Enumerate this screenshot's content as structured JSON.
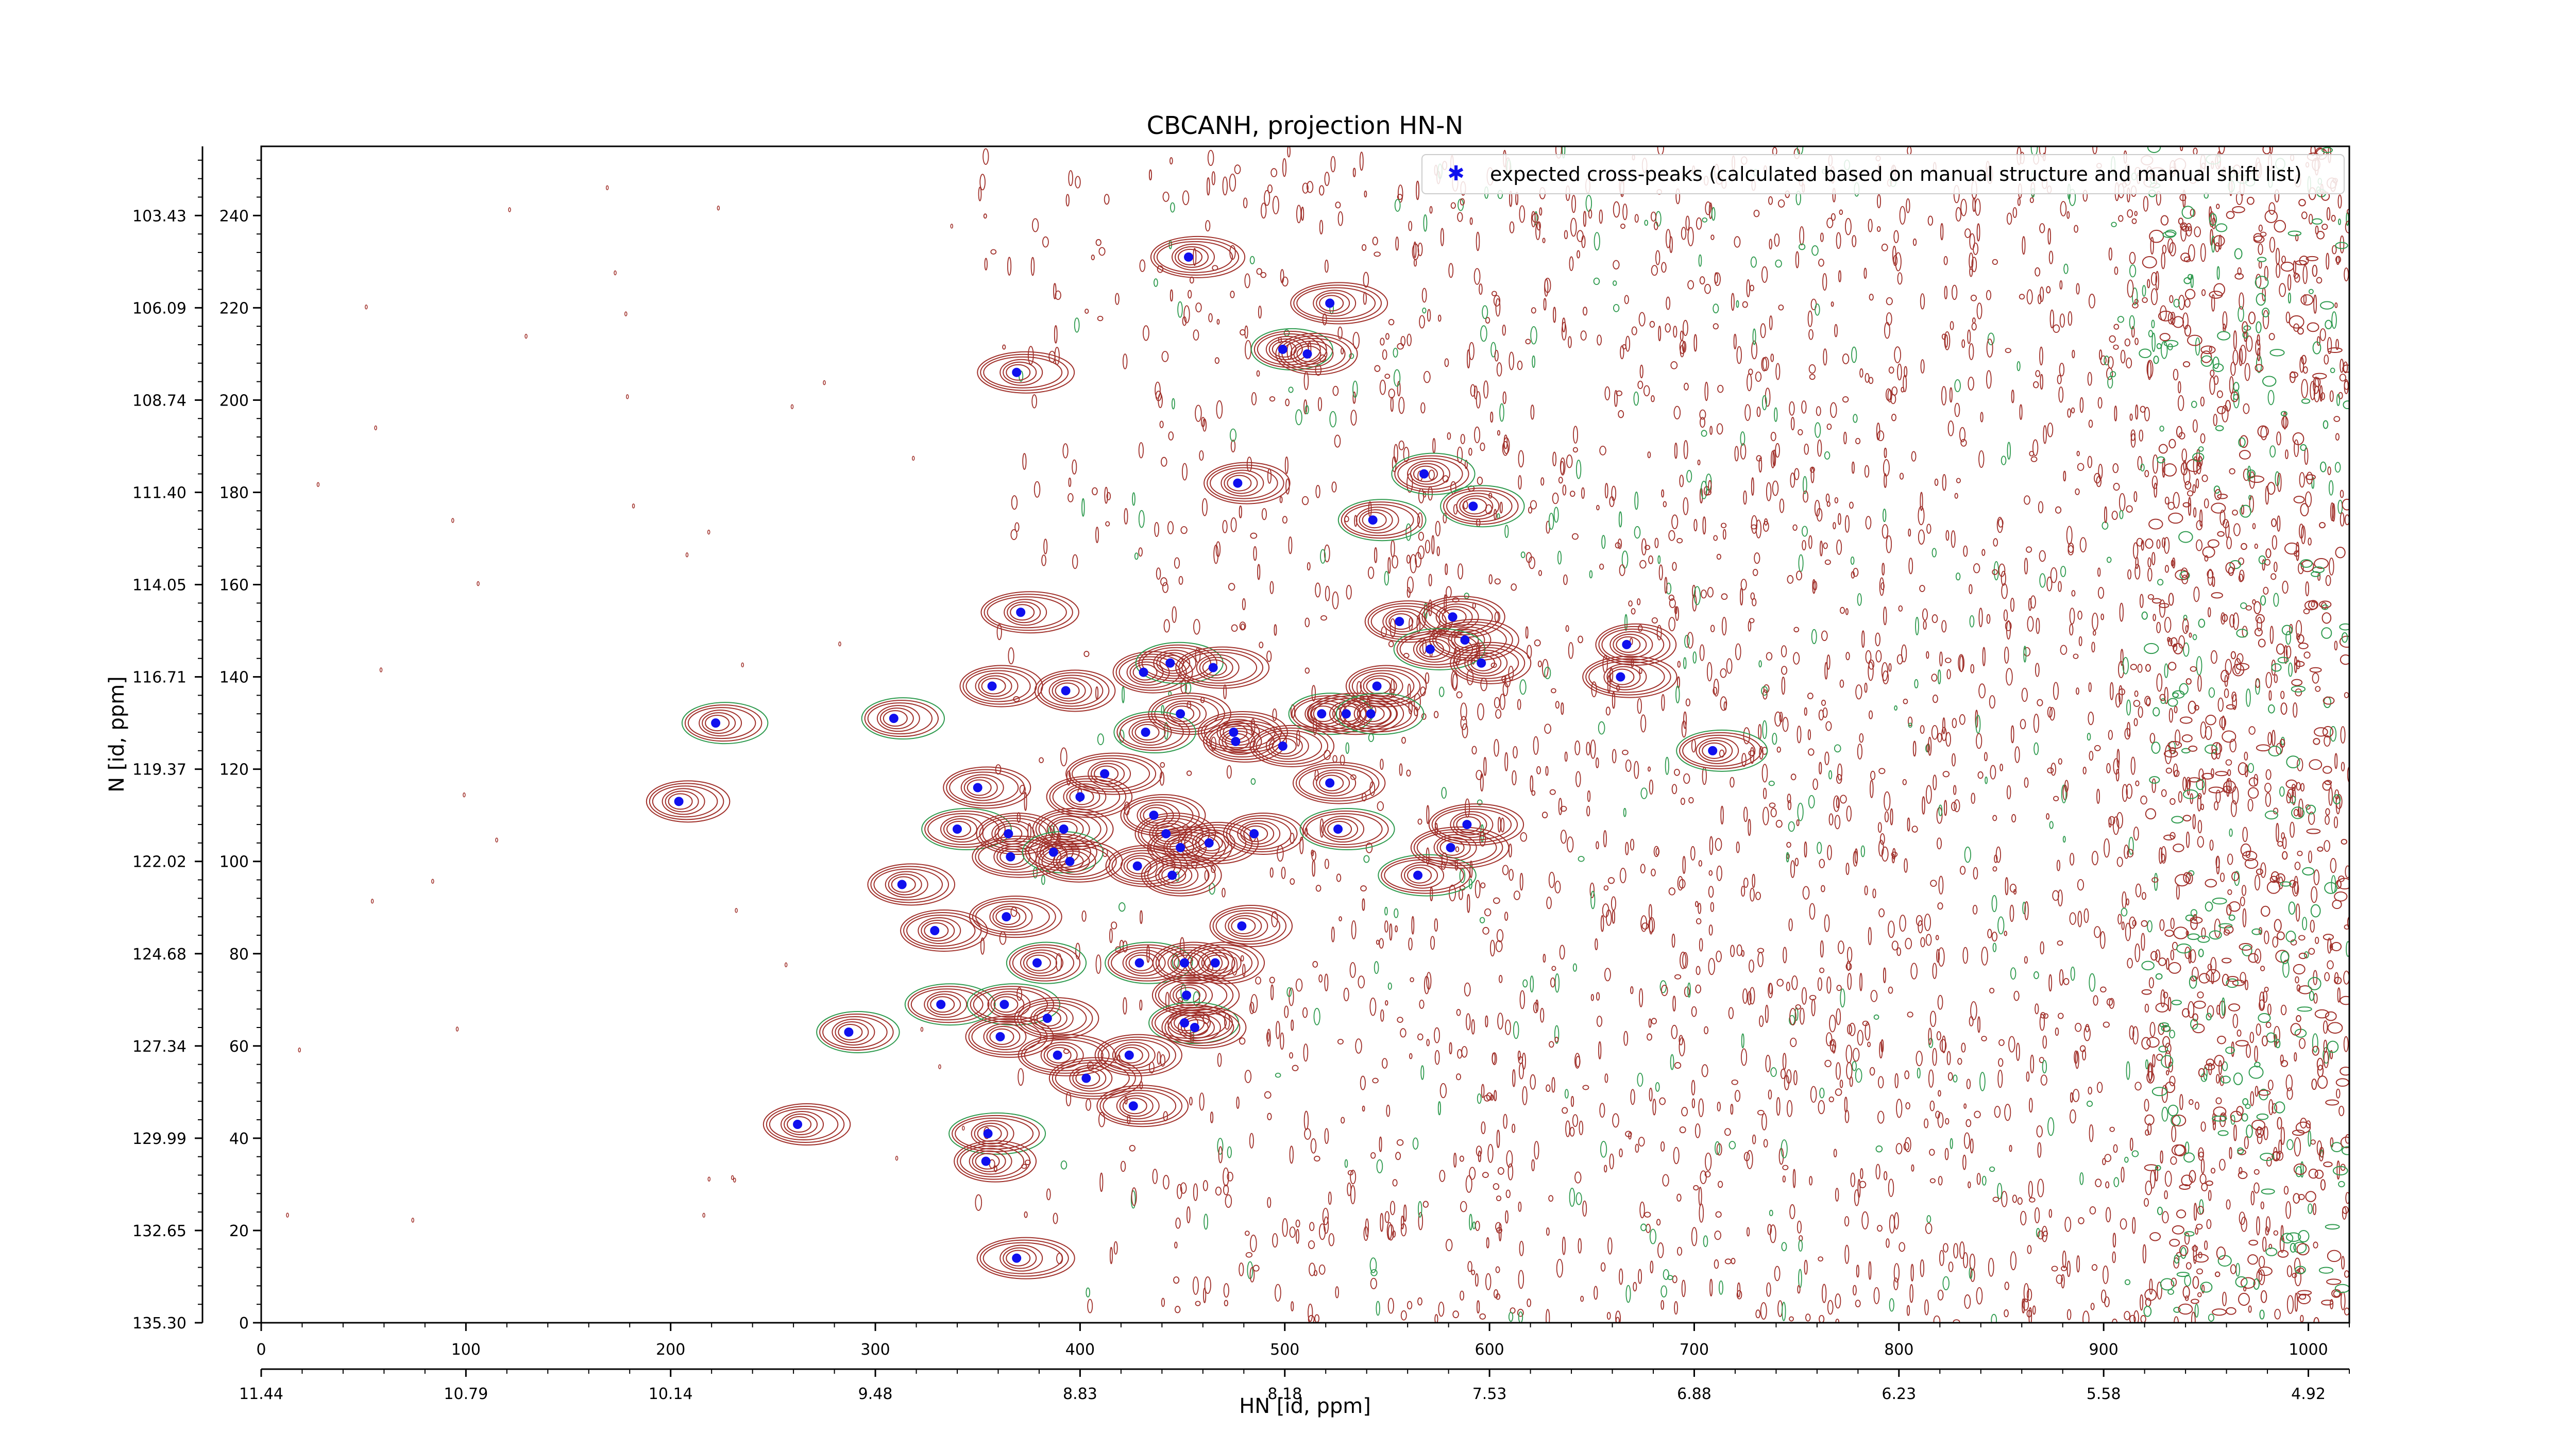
{
  "chart_data": {
    "type": "scatter",
    "title": "CBCANH, projection HN-N",
    "xlabel": "HN [id, ppm]",
    "ylabel": "N [id, ppm]",
    "xlim": [
      0,
      1020
    ],
    "ylim": [
      0,
      255
    ],
    "x_index_ticks": [
      0,
      100,
      200,
      300,
      400,
      500,
      600,
      700,
      800,
      900,
      1000
    ],
    "x_ppm_ticks": [
      "11.44",
      "10.79",
      "10.14",
      "9.48",
      "8.83",
      "8.18",
      "7.53",
      "6.88",
      "6.23",
      "5.58",
      "4.92"
    ],
    "y_index_ticks": [
      0,
      20,
      40,
      60,
      80,
      100,
      120,
      140,
      160,
      180,
      200,
      220,
      240
    ],
    "y_ppm_ticks": [
      "135.30",
      "132.65",
      "129.99",
      "127.34",
      "124.68",
      "122.02",
      "119.37",
      "116.71",
      "114.05",
      "111.40",
      "108.74",
      "106.09",
      "103.43"
    ],
    "grid": false,
    "legend_position": "top-right",
    "colors": {
      "marker": "#1010ee",
      "contour_positive": "#a0302a",
      "contour_negative": "#2e9a4e"
    },
    "series": [
      {
        "name": "expected cross-peaks (calculated based on manual structure and manual shift list)",
        "points": [
          [
            453,
            231
          ],
          [
            522,
            221
          ],
          [
            369,
            206
          ],
          [
            499,
            211
          ],
          [
            511,
            210
          ],
          [
            477,
            182
          ],
          [
            568,
            184
          ],
          [
            592,
            177
          ],
          [
            543,
            174
          ],
          [
            371,
            154
          ],
          [
            556,
            152
          ],
          [
            582,
            153
          ],
          [
            588,
            148
          ],
          [
            571,
            146
          ],
          [
            667,
            147
          ],
          [
            596,
            143
          ],
          [
            431,
            141
          ],
          [
            444,
            143
          ],
          [
            465,
            142
          ],
          [
            664,
            140
          ],
          [
            357,
            138
          ],
          [
            393,
            137
          ],
          [
            545,
            138
          ],
          [
            309,
            131
          ],
          [
            449,
            132
          ],
          [
            518,
            132
          ],
          [
            530,
            132
          ],
          [
            542,
            132
          ],
          [
            432,
            128
          ],
          [
            475,
            128
          ],
          [
            476,
            126
          ],
          [
            499,
            125
          ],
          [
            709,
            124
          ],
          [
            412,
            119
          ],
          [
            350,
            116
          ],
          [
            400,
            114
          ],
          [
            522,
            117
          ],
          [
            436,
            110
          ],
          [
            340,
            107
          ],
          [
            365,
            106
          ],
          [
            392,
            107
          ],
          [
            442,
            106
          ],
          [
            485,
            106
          ],
          [
            526,
            107
          ],
          [
            589,
            108
          ],
          [
            449,
            103
          ],
          [
            463,
            104
          ],
          [
            366,
            101
          ],
          [
            387,
            102
          ],
          [
            395,
            100
          ],
          [
            428,
            99
          ],
          [
            445,
            97
          ],
          [
            565,
            97
          ],
          [
            581,
            103
          ],
          [
            313,
            95
          ],
          [
            329,
            85
          ],
          [
            364,
            88
          ],
          [
            479,
            86
          ],
          [
            379,
            78
          ],
          [
            429,
            78
          ],
          [
            451,
            78
          ],
          [
            466,
            78
          ],
          [
            452,
            71
          ],
          [
            332,
            69
          ],
          [
            363,
            69
          ],
          [
            384,
            66
          ],
          [
            451,
            65
          ],
          [
            456,
            64
          ],
          [
            287,
            63
          ],
          [
            361,
            62
          ],
          [
            389,
            58
          ],
          [
            424,
            58
          ],
          [
            403,
            53
          ],
          [
            426,
            47
          ],
          [
            262,
            43
          ],
          [
            355,
            41
          ],
          [
            354,
            35
          ],
          [
            369,
            14
          ],
          [
            222,
            130
          ],
          [
            204,
            113
          ]
        ]
      }
    ]
  }
}
